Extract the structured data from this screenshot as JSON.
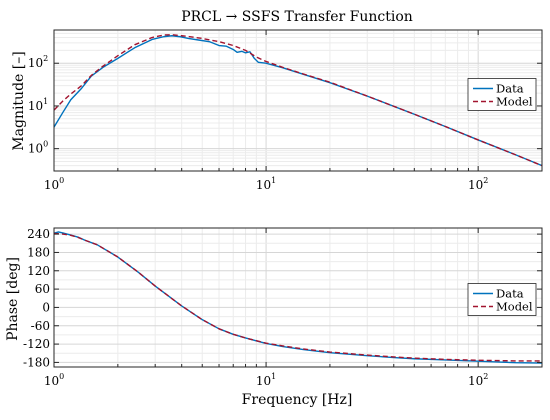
{
  "chart_data": [
    {
      "type": "line",
      "panel": "magnitude",
      "title": "PRCL → SSFS Transfer Function",
      "xlabel": "",
      "ylabel": "Magnitude [–]",
      "xscale": "log",
      "yscale": "log",
      "xlim": [
        1,
        200
      ],
      "ylim": [
        0.3,
        600
      ],
      "xticks": [
        1,
        10,
        100
      ],
      "xtick_labels": [
        {
          "base": "10",
          "exp": "0"
        },
        {
          "base": "10",
          "exp": "1"
        },
        {
          "base": "10",
          "exp": "2"
        }
      ],
      "yticks": [
        1,
        10,
        100
      ],
      "ytick_labels": [
        {
          "base": "10",
          "exp": "0"
        },
        {
          "base": "10",
          "exp": "1"
        },
        {
          "base": "10",
          "exp": "2"
        }
      ],
      "grid": true,
      "legend": "right",
      "series": [
        {
          "name": "Data",
          "color": "#0072BD",
          "dash": "solid",
          "x": [
            1.0,
            1.1,
            1.2,
            1.35,
            1.5,
            1.7,
            2.0,
            2.4,
            2.9,
            3.3,
            3.6,
            3.9,
            4.3,
            4.8,
            5.4,
            6.0,
            6.5,
            7.0,
            7.3,
            7.7,
            8.0,
            8.4,
            8.8,
            9.2,
            10,
            12,
            15,
            20,
            30,
            50,
            70,
            100,
            150,
            200
          ],
          "y": [
            3.2,
            7,
            14,
            26,
            50,
            80,
            130,
            230,
            360,
            420,
            440,
            420,
            380,
            350,
            320,
            260,
            250,
            210,
            180,
            190,
            175,
            185,
            130,
            105,
            100,
            78,
            55,
            35,
            17,
            6.4,
            3.3,
            1.6,
            0.72,
            0.4
          ]
        },
        {
          "name": "Model",
          "color": "#A2142F",
          "dash": "dashed",
          "x": [
            1.0,
            1.1,
            1.2,
            1.35,
            1.5,
            1.7,
            2.0,
            2.4,
            2.9,
            3.3,
            3.6,
            4.0,
            4.5,
            5.0,
            6.0,
            7.0,
            8.0,
            9.0,
            10,
            12,
            15,
            20,
            30,
            50,
            70,
            100,
            150,
            200
          ],
          "y": [
            8,
            13,
            19,
            30,
            52,
            85,
            150,
            270,
            400,
            460,
            465,
            440,
            410,
            380,
            320,
            260,
            200,
            140,
            110,
            80,
            56,
            36,
            17,
            6.4,
            3.3,
            1.6,
            0.72,
            0.4
          ]
        }
      ]
    },
    {
      "type": "line",
      "panel": "phase",
      "title": "",
      "xlabel": "Frequency [Hz]",
      "ylabel": "Phase [deg]",
      "xscale": "log",
      "yscale": "linear",
      "xlim": [
        1,
        200
      ],
      "ylim": [
        -195,
        260
      ],
      "xticks": [
        1,
        10,
        100
      ],
      "xtick_labels": [
        {
          "base": "10",
          "exp": "0"
        },
        {
          "base": "10",
          "exp": "1"
        },
        {
          "base": "10",
          "exp": "2"
        }
      ],
      "yticks": [
        240,
        180,
        120,
        60,
        0,
        -60,
        -120,
        -180
      ],
      "ytick_labels": [
        "240",
        "180",
        "120",
        "60",
        "0",
        "-60",
        "-120",
        "-180"
      ],
      "grid": true,
      "legend": "right",
      "series": [
        {
          "name": "Data",
          "color": "#0072BD",
          "dash": "solid",
          "x": [
            1.0,
            1.05,
            1.1,
            1.2,
            1.3,
            1.4,
            1.6,
            2.0,
            2.5,
            3.0,
            3.5,
            4.0,
            5.0,
            6.0,
            7.0,
            8.0,
            10,
            12,
            15,
            20,
            30,
            40,
            50,
            70,
            100,
            150,
            200
          ],
          "y": [
            243,
            247,
            244,
            237,
            230,
            220,
            205,
            165,
            115,
            70,
            35,
            5,
            -40,
            -70,
            -88,
            -100,
            -118,
            -128,
            -138,
            -148,
            -158,
            -164,
            -168,
            -172,
            -176,
            -181,
            -182
          ]
        },
        {
          "name": "Model",
          "color": "#A2142F",
          "dash": "dashed",
          "x": [
            1.0,
            1.1,
            1.2,
            1.3,
            1.4,
            1.6,
            2.0,
            2.5,
            3.0,
            3.5,
            4.0,
            5.0,
            6.0,
            7.0,
            8.0,
            10,
            12,
            15,
            20,
            30,
            40,
            50,
            70,
            100,
            150,
            200
          ],
          "y": [
            242,
            240,
            236,
            229,
            220,
            205,
            165,
            115,
            70,
            35,
            5,
            -40,
            -70,
            -88,
            -100,
            -117,
            -126,
            -136,
            -146,
            -156,
            -162,
            -166,
            -170,
            -173,
            -175,
            -175
          ]
        }
      ]
    }
  ]
}
